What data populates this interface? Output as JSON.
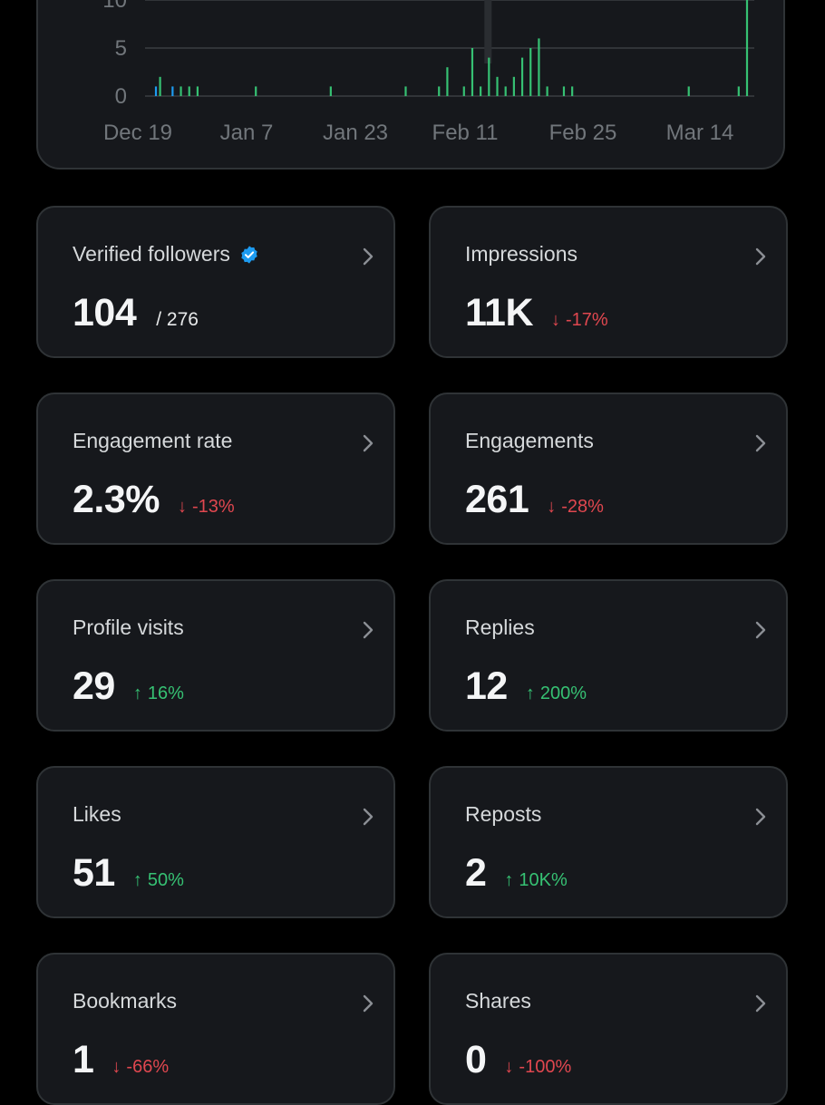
{
  "colors": {
    "background": "#000000",
    "card": "#16181c",
    "border": "#2f3336",
    "positive": "#36c173",
    "negative": "#e0474f",
    "verified": "#1d9bf0",
    "grid": "#3a3d42",
    "axis_text": "#71767b"
  },
  "chart_data": {
    "type": "bar",
    "title": "",
    "y_ticks": [
      "0",
      "5",
      "10"
    ],
    "x_ticks": [
      "Dec 19",
      "Jan 7",
      "Jan 23",
      "Feb 11",
      "Feb 25",
      "Mar 14"
    ],
    "ylim": [
      0,
      10
    ],
    "series": [
      {
        "name": "green",
        "color": "#36c173",
        "points": [
          {
            "x": 0.5,
            "y": 2
          },
          {
            "x": 3,
            "y": 1
          },
          {
            "x": 4,
            "y": 1
          },
          {
            "x": 5,
            "y": 1
          },
          {
            "x": 12,
            "y": 1
          },
          {
            "x": 21,
            "y": 1
          },
          {
            "x": 30,
            "y": 1
          },
          {
            "x": 34,
            "y": 1
          },
          {
            "x": 35,
            "y": 3
          },
          {
            "x": 37,
            "y": 1
          },
          {
            "x": 38,
            "y": 5
          },
          {
            "x": 39,
            "y": 1
          },
          {
            "x": 40,
            "y": 4
          },
          {
            "x": 41,
            "y": 2
          },
          {
            "x": 42,
            "y": 1
          },
          {
            "x": 43,
            "y": 2
          },
          {
            "x": 44,
            "y": 4
          },
          {
            "x": 45,
            "y": 5
          },
          {
            "x": 46,
            "y": 6
          },
          {
            "x": 47,
            "y": 1
          },
          {
            "x": 49,
            "y": 1
          },
          {
            "x": 50,
            "y": 1
          },
          {
            "x": 64,
            "y": 1
          },
          {
            "x": 70,
            "y": 1
          },
          {
            "x": 71,
            "y": 11
          }
        ]
      },
      {
        "name": "blue",
        "color": "#1d9bf0",
        "points": [
          {
            "x": 0,
            "y": 1
          },
          {
            "x": 2,
            "y": 1
          }
        ]
      }
    ],
    "highlight_day": 40
  },
  "cards": [
    {
      "label": "Verified followers",
      "value": "104",
      "sub": "/ 276",
      "verified": true
    },
    {
      "label": "Impressions",
      "value": "11K",
      "change": "-17%",
      "direction": "down"
    },
    {
      "label": "Engagement rate",
      "value": "2.3%",
      "change": "-13%",
      "direction": "down"
    },
    {
      "label": "Engagements",
      "value": "261",
      "change": "-28%",
      "direction": "down"
    },
    {
      "label": "Profile visits",
      "value": "29",
      "change": "16%",
      "direction": "up"
    },
    {
      "label": "Replies",
      "value": "12",
      "change": "200%",
      "direction": "up"
    },
    {
      "label": "Likes",
      "value": "51",
      "change": "50%",
      "direction": "up"
    },
    {
      "label": "Reposts",
      "value": "2",
      "change": "10K%",
      "direction": "up"
    },
    {
      "label": "Bookmarks",
      "value": "1",
      "change": "-66%",
      "direction": "down"
    },
    {
      "label": "Shares",
      "value": "0",
      "change": "-100%",
      "direction": "down"
    }
  ],
  "icons": {
    "chevron": "chevron-right-icon",
    "verified": "verified-badge-icon",
    "up": "arrow-up-icon",
    "down": "arrow-down-icon"
  }
}
